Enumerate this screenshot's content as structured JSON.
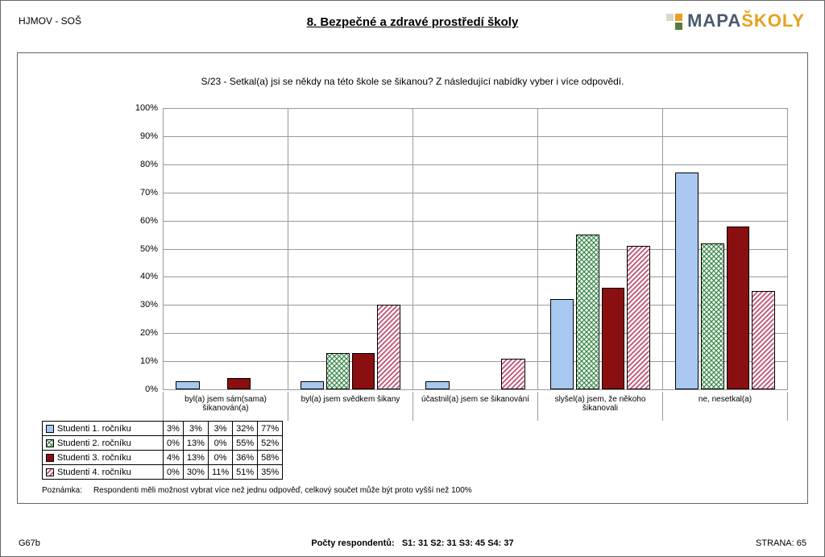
{
  "header": {
    "school_code": "HJMOV - SOŠ",
    "title": "8. Bezpečné a zdravé prostředí školy",
    "logo_mapa": "MAPA",
    "logo_skoly": "ŠKOLY",
    "logo_colors": {
      "mapa": "#4a5a70",
      "skoly": "#e8a020",
      "sq1": "#e8a020",
      "sq2": "#d8d8c8",
      "sq3": "#5a7a3a"
    }
  },
  "chart": {
    "type": "bar",
    "question": "S/23 - Setkal(a) jsi se někdy na této škole se šikanou?  Z následující nabídky vyber i více odpovědí.",
    "ylim": [
      0,
      100
    ],
    "ytick_step": 10,
    "y_suffix": "%",
    "grid_color": "#999999",
    "categories": [
      "byl(a) jsem sám(sama) šikanován(a)",
      "byl(a) jsem svědkem šikany",
      "účastnil(a) jsem se šikanování",
      "slyšel(a) jsem, že někoho šikanovali",
      "ne, nesetkal(a)"
    ],
    "series": [
      {
        "name": "Studenti 1. ročníku",
        "fill": "blue",
        "color": "#a8c8f0",
        "values": [
          3,
          3,
          3,
          32,
          77
        ]
      },
      {
        "name": "Studenti 2. ročníku",
        "fill": "green",
        "color": "#3a8a4a",
        "values": [
          0,
          13,
          0,
          55,
          52
        ]
      },
      {
        "name": "Studenti 3. ročníku",
        "fill": "red",
        "color": "#8a0f10",
        "values": [
          4,
          13,
          0,
          36,
          58
        ]
      },
      {
        "name": "Studenti 4. ročníku",
        "fill": "stripe",
        "color": "#c05070",
        "values": [
          0,
          30,
          11,
          51,
          35
        ]
      }
    ],
    "note_label": "Poznámka:",
    "note": "Respondenti měli možnost vybrat více než jednu odpověď, celkový součet může být proto vyšší než 100%"
  },
  "footer": {
    "code": "G67b",
    "respondents_label": "Počty respondentů:",
    "respondents": "S1: 31   S2: 31   S3: 45   S4: 37",
    "page": "STRANA: 65"
  }
}
